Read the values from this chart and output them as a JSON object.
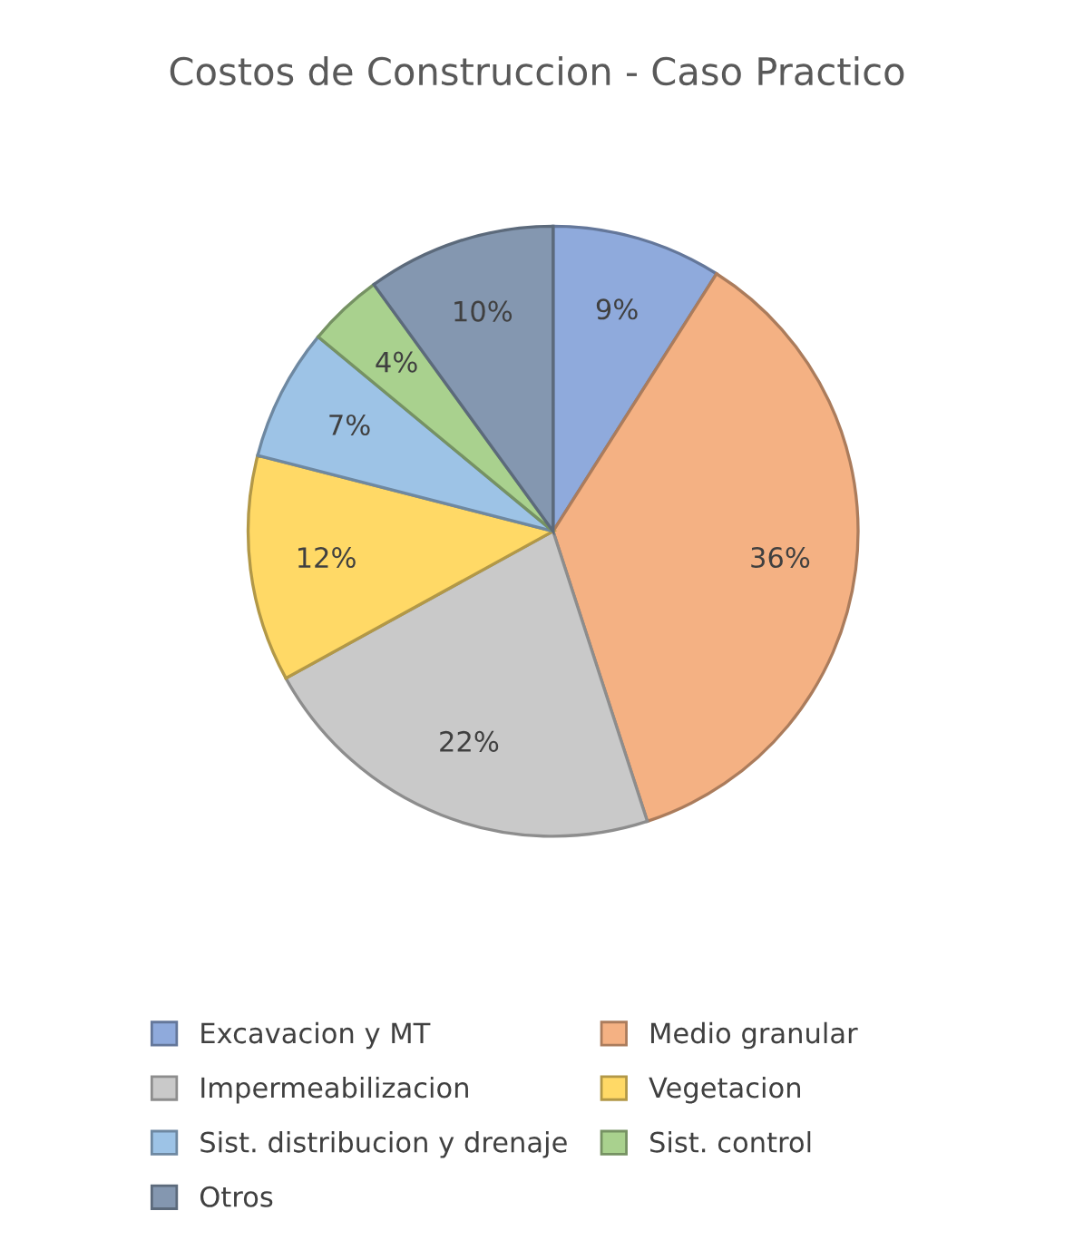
{
  "chart_data": {
    "type": "pie",
    "title": "Costos de Construccion - Caso Practico",
    "categories": [
      "Excavacion y MT",
      "Medio granular",
      "Impermeabilizacion",
      "Vegetacion",
      "Sist. distribucion y drenaje",
      "Sist. control",
      "Otros"
    ],
    "values": [
      9,
      36,
      22,
      12,
      7,
      4,
      10
    ],
    "value_labels": [
      "9%",
      "36%",
      "22%",
      "12%",
      "7%",
      "4%",
      "10%"
    ],
    "colors": [
      "#8faadc",
      "#f4b183",
      "#c9c9c9",
      "#ffd966",
      "#9dc3e6",
      "#a9d18e",
      "#8497b0"
    ],
    "legend": "bottom"
  }
}
